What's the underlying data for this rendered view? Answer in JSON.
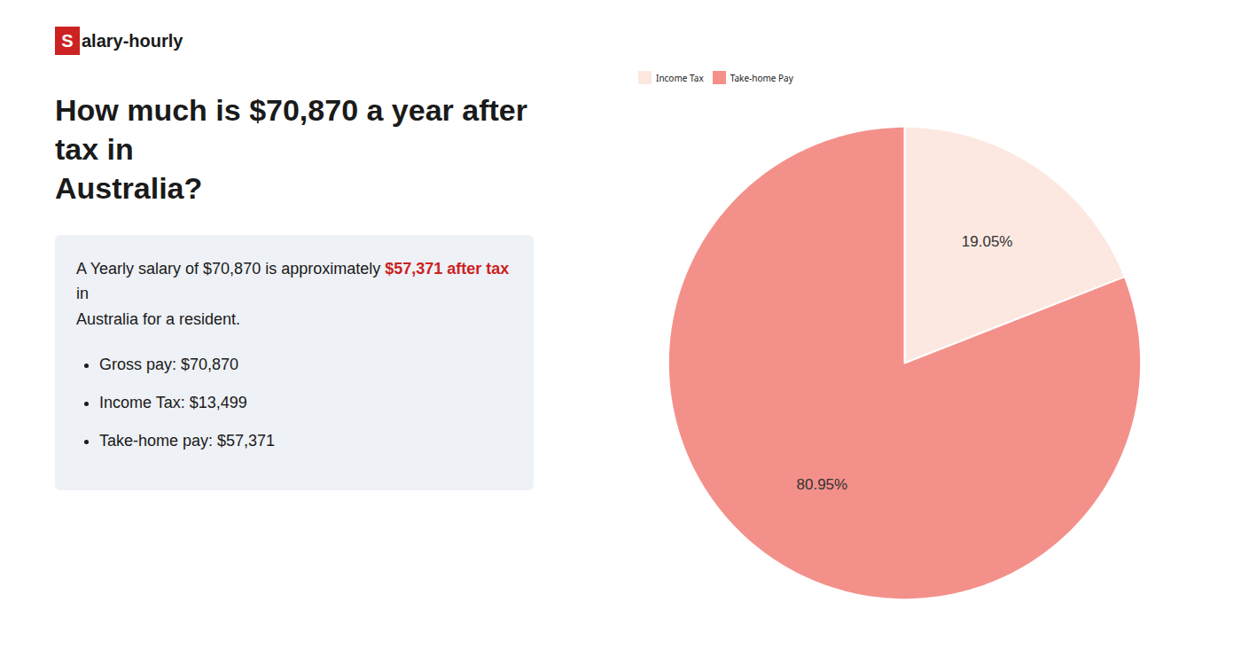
{
  "chart_data": {
    "type": "pie",
    "title": "How much is $70,870 a year after tax in\nAustralia?",
    "categories": [
      "Income Tax",
      "Take-home Pay"
    ],
    "values": [
      19.05,
      80.95
    ],
    "value_labels": [
      "19.05%",
      "80.95%"
    ],
    "colors": [
      "#fce8e0",
      "#f4908a"
    ],
    "data_labels": true,
    "legend": "top",
    "annotations": {
      "logo": [
        "S",
        "alary-hourly"
      ],
      "summary": [
        "A Yearly salary of $70,870 is approximately ",
        "$57,371 after tax",
        " in",
        "Australia for a resident."
      ],
      "bullets": [
        "Gross pay: $70,870",
        "Income Tax: $13,499",
        "Take-home pay: $57,371"
      ],
      "highlight_color": "#cc2222"
    }
  }
}
